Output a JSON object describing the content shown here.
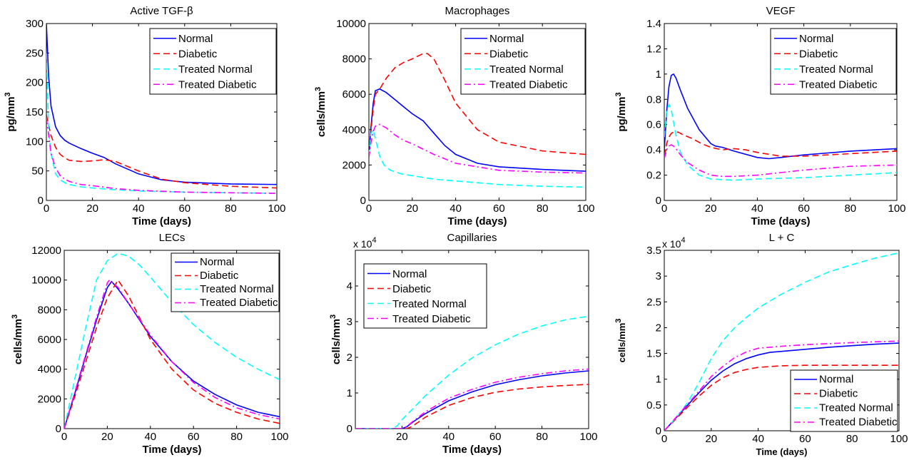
{
  "figure": {
    "legend_entries": [
      "Normal",
      "Diabetic",
      "Treated Normal",
      "Treated Diabetic"
    ],
    "colors": {
      "Normal": "#0000ff",
      "Diabetic": "#ff0000",
      "Treated Normal": "#00ffff",
      "Treated Diabetic": "#ff00ff"
    },
    "dash_styles": {
      "Normal": "solid",
      "Diabetic": "dashed",
      "Treated Normal": "dashed",
      "Treated Diabetic": "dash-dot"
    }
  },
  "chart_data": [
    {
      "type": "line",
      "title": "Active TGF-β",
      "xlabel": "Time (days)",
      "ylabel": "pg/mm",
      "ylabel_sup": "3",
      "xlim": [
        0,
        100
      ],
      "ylim": [
        0,
        300
      ],
      "xticks": [
        0,
        20,
        40,
        60,
        80,
        100
      ],
      "yticks": [
        0,
        50,
        100,
        150,
        200,
        250,
        300
      ],
      "legend_location": "top-right",
      "series": [
        {
          "name": "Normal",
          "x": [
            0,
            1,
            2,
            4,
            6,
            8,
            10,
            15,
            20,
            25,
            30,
            40,
            50,
            60,
            80,
            100
          ],
          "y": [
            300,
            210,
            160,
            125,
            110,
            102,
            97,
            88,
            80,
            73,
            62,
            45,
            35,
            31,
            28,
            27
          ]
        },
        {
          "name": "Diabetic",
          "x": [
            0,
            2,
            4,
            6,
            8,
            10,
            15,
            20,
            25,
            30,
            40,
            50,
            60,
            80,
            100
          ],
          "y": [
            145,
            110,
            90,
            78,
            72,
            68,
            66,
            67,
            69,
            66,
            50,
            36,
            30,
            24,
            21
          ]
        },
        {
          "name": "Treated Normal",
          "x": [
            0,
            1,
            2,
            4,
            6,
            8,
            10,
            15,
            20,
            30,
            40,
            60,
            80,
            100
          ],
          "y": [
            250,
            120,
            80,
            45,
            35,
            30,
            27,
            23,
            21,
            18,
            16,
            14,
            13,
            12
          ]
        },
        {
          "name": "Treated Diabetic",
          "x": [
            0,
            2,
            4,
            6,
            8,
            10,
            15,
            20,
            30,
            40,
            60,
            80,
            100
          ],
          "y": [
            140,
            80,
            55,
            42,
            36,
            32,
            27,
            25,
            20,
            17,
            14,
            13,
            12
          ]
        }
      ]
    },
    {
      "type": "line",
      "title": "Macrophages",
      "xlabel": "Time (days)",
      "ylabel": "cells/mm",
      "ylabel_sup": "3",
      "xlim": [
        0,
        100
      ],
      "ylim": [
        0,
        10000
      ],
      "xticks": [
        0,
        20,
        40,
        60,
        80,
        100
      ],
      "yticks": [
        0,
        2000,
        4000,
        6000,
        8000,
        10000
      ],
      "legend_location": "top-right",
      "series": [
        {
          "name": "Normal",
          "x": [
            0,
            1,
            2,
            3,
            5,
            8,
            12,
            16,
            20,
            25,
            30,
            35,
            40,
            50,
            60,
            80,
            100
          ],
          "y": [
            2500,
            4200,
            5500,
            6200,
            6300,
            6100,
            5700,
            5300,
            4900,
            4500,
            3800,
            3100,
            2600,
            2100,
            1900,
            1750,
            1650
          ]
        },
        {
          "name": "Diabetic",
          "x": [
            0,
            1,
            2,
            3,
            5,
            8,
            12,
            16,
            20,
            25,
            27,
            30,
            35,
            40,
            50,
            60,
            80,
            100
          ],
          "y": [
            2500,
            4000,
            5200,
            6000,
            6300,
            6900,
            7500,
            7800,
            8000,
            8300,
            8300,
            8000,
            6800,
            5500,
            4000,
            3300,
            2800,
            2600
          ]
        },
        {
          "name": "Treated Normal",
          "x": [
            0,
            1,
            2,
            3,
            4,
            5,
            7,
            10,
            15,
            20,
            30,
            40,
            60,
            80,
            100
          ],
          "y": [
            2500,
            3800,
            4000,
            3500,
            3000,
            2500,
            2000,
            1700,
            1500,
            1400,
            1200,
            1100,
            900,
            800,
            750
          ]
        },
        {
          "name": "Treated Diabetic",
          "x": [
            0,
            1,
            2,
            3,
            5,
            8,
            12,
            16,
            20,
            25,
            30,
            40,
            50,
            60,
            80,
            100
          ],
          "y": [
            2400,
            3300,
            3900,
            4200,
            4300,
            4100,
            3700,
            3400,
            3200,
            2900,
            2600,
            2100,
            1900,
            1700,
            1600,
            1550
          ]
        }
      ]
    },
    {
      "type": "line",
      "title": "VEGF",
      "xlabel": "Time (days)",
      "ylabel": "pg/mm",
      "ylabel_sup": "3",
      "xlim": [
        0,
        100
      ],
      "ylim": [
        0,
        1.4
      ],
      "xticks": [
        0,
        20,
        40,
        60,
        80,
        100
      ],
      "yticks": [
        0,
        0.2,
        0.4,
        0.6,
        0.8,
        1,
        1.2,
        1.4
      ],
      "legend_location": "top-right",
      "series": [
        {
          "name": "Normal",
          "x": [
            0,
            1,
            2,
            3,
            4,
            5,
            7,
            10,
            15,
            20,
            22,
            25,
            30,
            40,
            45,
            50,
            60,
            80,
            100
          ],
          "y": [
            0.4,
            0.7,
            0.9,
            0.99,
            1.0,
            0.97,
            0.87,
            0.73,
            0.56,
            0.45,
            0.43,
            0.42,
            0.39,
            0.34,
            0.33,
            0.34,
            0.36,
            0.39,
            0.41
          ]
        },
        {
          "name": "Diabetic",
          "x": [
            0,
            1,
            2,
            3,
            4,
            6,
            8,
            12,
            16,
            20,
            25,
            30,
            35,
            40,
            50,
            60,
            80,
            100
          ],
          "y": [
            0.35,
            0.45,
            0.5,
            0.53,
            0.54,
            0.54,
            0.52,
            0.49,
            0.45,
            0.42,
            0.4,
            0.41,
            0.4,
            0.38,
            0.35,
            0.35,
            0.37,
            0.39
          ]
        },
        {
          "name": "Treated Normal",
          "x": [
            0,
            1,
            2,
            3,
            4,
            5,
            7,
            10,
            15,
            20,
            30,
            40,
            60,
            80,
            100
          ],
          "y": [
            0.5,
            0.7,
            0.76,
            0.72,
            0.62,
            0.52,
            0.38,
            0.28,
            0.2,
            0.17,
            0.16,
            0.17,
            0.18,
            0.2,
            0.22
          ]
        },
        {
          "name": "Treated Diabetic",
          "x": [
            0,
            1,
            2,
            3,
            4,
            5,
            7,
            10,
            15,
            20,
            25,
            30,
            40,
            50,
            60,
            80,
            100
          ],
          "y": [
            0.33,
            0.4,
            0.43,
            0.44,
            0.43,
            0.41,
            0.36,
            0.3,
            0.24,
            0.2,
            0.19,
            0.19,
            0.2,
            0.22,
            0.24,
            0.27,
            0.28
          ]
        }
      ]
    },
    {
      "type": "line",
      "title": "LECs",
      "xlabel": "Time (days)",
      "ylabel": "cells/mm",
      "ylabel_sup": "3",
      "xlim": [
        0,
        100
      ],
      "ylim": [
        0,
        12000
      ],
      "xticks": [
        0,
        20,
        40,
        60,
        80,
        100
      ],
      "yticks": [
        0,
        2000,
        4000,
        6000,
        8000,
        10000,
        12000
      ],
      "legend_location": "top-right",
      "series": [
        {
          "name": "Normal",
          "x": [
            0,
            5,
            10,
            15,
            20,
            22,
            25,
            30,
            40,
            50,
            60,
            70,
            80,
            90,
            100
          ],
          "y": [
            0,
            2400,
            4900,
            7300,
            9500,
            9900,
            9400,
            8400,
            6200,
            4500,
            3200,
            2300,
            1600,
            1100,
            800
          ]
        },
        {
          "name": "Diabetic",
          "x": [
            0,
            5,
            10,
            15,
            20,
            25,
            30,
            40,
            50,
            60,
            70,
            80,
            90,
            100
          ],
          "y": [
            0,
            2200,
            4500,
            6800,
            8800,
            10000,
            8900,
            6000,
            4000,
            2600,
            1700,
            1100,
            650,
            350
          ]
        },
        {
          "name": "Treated Normal",
          "x": [
            0,
            5,
            10,
            15,
            20,
            25,
            30,
            35,
            40,
            50,
            60,
            70,
            80,
            90,
            100
          ],
          "y": [
            0,
            3400,
            6800,
            10000,
            11300,
            11800,
            11600,
            11000,
            10200,
            8500,
            7000,
            5800,
            4800,
            4000,
            3300
          ]
        },
        {
          "name": "Treated Diabetic",
          "x": [
            0,
            5,
            10,
            15,
            20,
            21,
            25,
            30,
            40,
            50,
            60,
            70,
            80,
            90,
            100
          ],
          "y": [
            0,
            2500,
            5000,
            7500,
            9800,
            10000,
            9500,
            8400,
            6300,
            4500,
            3100,
            2100,
            1400,
            950,
            650
          ]
        }
      ]
    },
    {
      "type": "line",
      "title": "Capillaries",
      "xlabel": "Time (days)",
      "ylabel": "cells/mm",
      "ylabel_sup": "3",
      "multiplier": "x 10",
      "multiplier_exp": "4",
      "xlim": [
        0,
        100
      ],
      "ylim": [
        0,
        5
      ],
      "xticks": [
        20,
        40,
        60,
        80,
        100
      ],
      "yticks": [
        0,
        1,
        2,
        3,
        4
      ],
      "legend_location": "top-left",
      "series": [
        {
          "name": "Normal",
          "x": [
            0,
            20,
            22,
            25,
            30,
            40,
            50,
            60,
            70,
            80,
            90,
            100
          ],
          "y": [
            0,
            0,
            0.05,
            0.2,
            0.42,
            0.78,
            1.03,
            1.23,
            1.37,
            1.48,
            1.56,
            1.62
          ]
        },
        {
          "name": "Diabetic",
          "x": [
            0,
            22,
            24,
            27,
            30,
            40,
            50,
            60,
            70,
            80,
            90,
            100
          ],
          "y": [
            0,
            0,
            0.05,
            0.18,
            0.32,
            0.65,
            0.87,
            1.02,
            1.11,
            1.17,
            1.21,
            1.24
          ]
        },
        {
          "name": "Treated Normal",
          "x": [
            0,
            16,
            18,
            20,
            25,
            30,
            40,
            50,
            60,
            70,
            80,
            90,
            100
          ],
          "y": [
            0,
            0,
            0.08,
            0.25,
            0.58,
            0.92,
            1.5,
            1.98,
            2.35,
            2.65,
            2.88,
            3.05,
            3.15
          ]
        },
        {
          "name": "Treated Diabetic",
          "x": [
            0,
            20,
            22,
            25,
            30,
            40,
            50,
            60,
            70,
            80,
            90,
            100
          ],
          "y": [
            0,
            0,
            0.06,
            0.22,
            0.47,
            0.85,
            1.1,
            1.3,
            1.44,
            1.54,
            1.62,
            1.67
          ]
        }
      ]
    },
    {
      "type": "line",
      "title": "L + C",
      "xlabel": "Time (days)",
      "ylabel": "cells/mm",
      "ylabel_sup": "3",
      "multiplier": "x 10",
      "multiplier_exp": "4",
      "xlim": [
        0,
        100
      ],
      "ylim": [
        0,
        3.5
      ],
      "xticks": [
        0,
        20,
        40,
        60,
        80,
        100
      ],
      "yticks": [
        0,
        0.5,
        1,
        1.5,
        2,
        2.5,
        3,
        3.5
      ],
      "legend_location": "bottom-right",
      "series": [
        {
          "name": "Normal",
          "x": [
            0,
            5,
            10,
            15,
            20,
            25,
            30,
            35,
            40,
            45,
            50,
            60,
            70,
            80,
            90,
            100
          ],
          "y": [
            0,
            0.25,
            0.5,
            0.75,
            0.98,
            1.16,
            1.3,
            1.4,
            1.47,
            1.52,
            1.54,
            1.58,
            1.62,
            1.65,
            1.68,
            1.7
          ]
        },
        {
          "name": "Diabetic",
          "x": [
            0,
            5,
            10,
            15,
            20,
            25,
            30,
            35,
            40,
            50,
            60,
            80,
            100
          ],
          "y": [
            0,
            0.23,
            0.46,
            0.68,
            0.88,
            1.03,
            1.13,
            1.19,
            1.23,
            1.26,
            1.27,
            1.27,
            1.27
          ]
        },
        {
          "name": "Treated Normal",
          "x": [
            0,
            5,
            10,
            15,
            20,
            25,
            30,
            35,
            40,
            50,
            60,
            70,
            80,
            90,
            100
          ],
          "y": [
            0,
            0.25,
            0.55,
            0.95,
            1.4,
            1.75,
            2.0,
            2.2,
            2.38,
            2.65,
            2.88,
            3.08,
            3.22,
            3.35,
            3.45
          ]
        },
        {
          "name": "Treated Diabetic",
          "x": [
            0,
            5,
            10,
            15,
            20,
            25,
            30,
            35,
            40,
            50,
            60,
            80,
            100
          ],
          "y": [
            0,
            0.26,
            0.52,
            0.78,
            1.05,
            1.25,
            1.42,
            1.53,
            1.6,
            1.64,
            1.67,
            1.71,
            1.74
          ]
        }
      ]
    }
  ]
}
